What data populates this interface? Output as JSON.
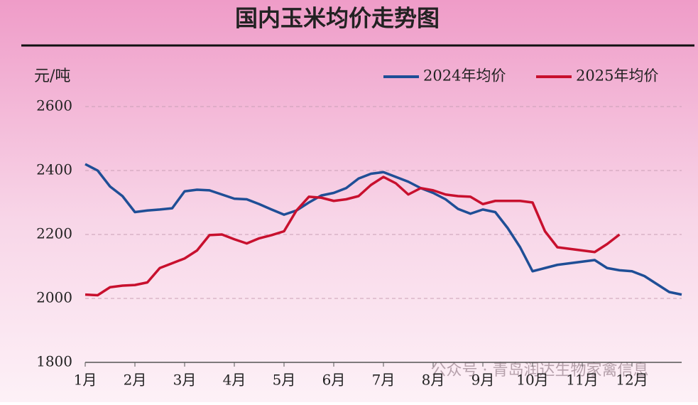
{
  "chart_data": {
    "type": "line",
    "title": "国内玉米均价走势图",
    "y_label": "元/吨",
    "watermark": "公众号 · 青岛润达生物家禽信息",
    "x": [
      1,
      1.25,
      1.5,
      1.75,
      2,
      2.25,
      2.5,
      2.75,
      3,
      3.25,
      3.5,
      3.75,
      4,
      4.25,
      4.5,
      4.75,
      5,
      5.25,
      5.5,
      5.75,
      6,
      6.25,
      6.5,
      6.75,
      7,
      7.25,
      7.5,
      7.75,
      8,
      8.25,
      8.5,
      8.75,
      9,
      9.25,
      9.5,
      9.75,
      10,
      10.25,
      10.5,
      10.75,
      11,
      11.25,
      11.5,
      11.75,
      12,
      12.25,
      12.5,
      12.75,
      13
    ],
    "xlim": [
      1,
      13
    ],
    "xticks": [
      {
        "value": 1,
        "label": "1月"
      },
      {
        "value": 2,
        "label": "2月"
      },
      {
        "value": 3,
        "label": "3月"
      },
      {
        "value": 4,
        "label": "4月"
      },
      {
        "value": 5,
        "label": "5月"
      },
      {
        "value": 6,
        "label": "6月"
      },
      {
        "value": 7,
        "label": "7月"
      },
      {
        "value": 8,
        "label": "8月"
      },
      {
        "value": 9,
        "label": "9月"
      },
      {
        "value": 10,
        "label": "10月"
      },
      {
        "value": 11,
        "label": "11月"
      },
      {
        "value": 12,
        "label": "12月"
      }
    ],
    "ylim": [
      1800,
      2600
    ],
    "yticks": [
      1800,
      2000,
      2200,
      2400,
      2600
    ],
    "grid": true,
    "legend": "top-right",
    "series": [
      {
        "name": "2024年均价",
        "color": "#1f4e96",
        "values": [
          2420,
          2400,
          2350,
          2320,
          2270,
          2275,
          2278,
          2282,
          2335,
          2340,
          2338,
          2325,
          2312,
          2310,
          2295,
          2278,
          2262,
          2275,
          2300,
          2322,
          2330,
          2345,
          2375,
          2390,
          2395,
          2380,
          2365,
          2345,
          2330,
          2310,
          2280,
          2265,
          2278,
          2270,
          2220,
          2160,
          2085,
          2095,
          2105,
          2110,
          2115,
          2120,
          2095,
          2088,
          2085,
          2070,
          2045,
          2020,
          2012
        ]
      },
      {
        "name": "2025年均价",
        "color": "#c8102e",
        "values": [
          2012,
          2010,
          2035,
          2040,
          2042,
          2050,
          2095,
          2110,
          2125,
          2150,
          2198,
          2200,
          2185,
          2172,
          2188,
          2198,
          2210,
          2275,
          2318,
          2315,
          2305,
          2310,
          2320,
          2355,
          2380,
          2360,
          2325,
          2345,
          2338,
          2325,
          2320,
          2318,
          2295,
          2305,
          2305,
          2305,
          2300,
          2210,
          2160,
          2155,
          2150,
          2145,
          2170,
          2200,
          null,
          null,
          null,
          null,
          null
        ]
      }
    ]
  }
}
